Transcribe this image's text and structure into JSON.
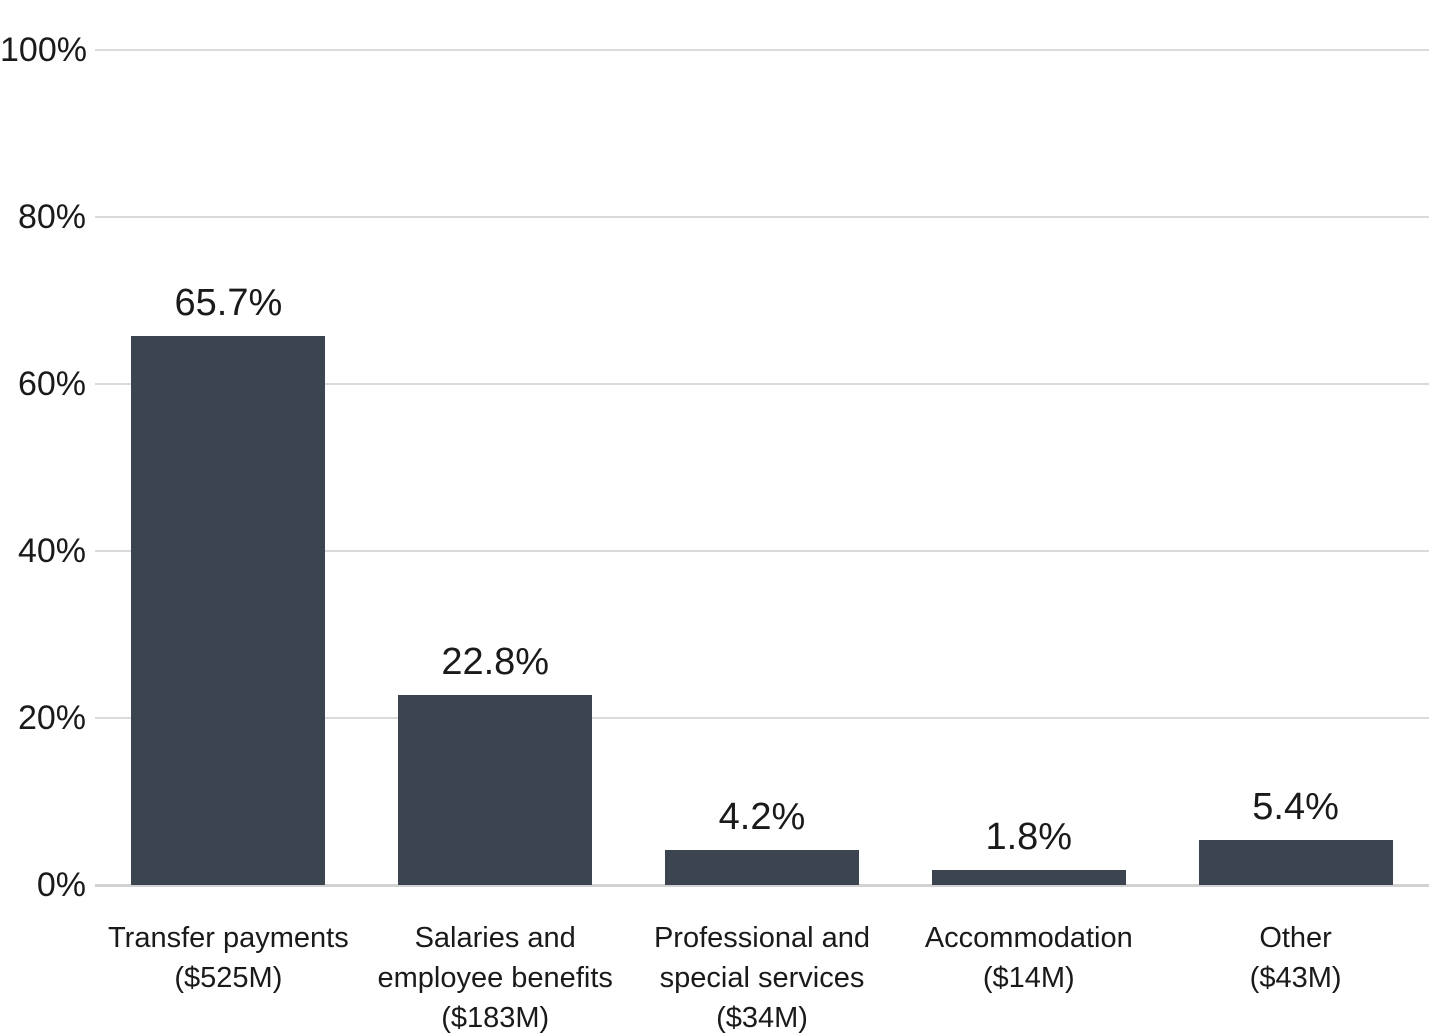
{
  "chart_data": {
    "type": "bar",
    "title": "",
    "xlabel": "",
    "ylabel": "",
    "ylim": [
      0,
      100
    ],
    "grid": true,
    "legend": "none",
    "background": "#ffffff",
    "yticks": [
      {
        "value": 0,
        "label": "0%"
      },
      {
        "value": 20,
        "label": "20%"
      },
      {
        "value": 40,
        "label": "40%"
      },
      {
        "value": 60,
        "label": "60%"
      },
      {
        "value": 80,
        "label": "80%"
      },
      {
        "value": 100,
        "label": "100%"
      }
    ],
    "categories": [
      "Transfer payments ($525M)",
      "Salaries and employee benefits ($183M)",
      "Professional and special services ($34M)",
      "Accommodation ($14M)",
      "Other ($43M)"
    ],
    "values": [
      65.7,
      22.8,
      4.2,
      1.8,
      5.4
    ],
    "bars": [
      {
        "category_lines": [
          "Transfer payments",
          "($525M)"
        ],
        "amount": "$525M",
        "value": 65.7,
        "data_label": "65.7%"
      },
      {
        "category_lines": [
          "Salaries and",
          "employee benefits",
          "($183M)"
        ],
        "amount": "$183M",
        "value": 22.8,
        "data_label": "22.8%"
      },
      {
        "category_lines": [
          "Professional and",
          "special services",
          "($34M)"
        ],
        "amount": "$34M",
        "value": 4.2,
        "data_label": "4.2%"
      },
      {
        "category_lines": [
          "Accommodation",
          "($14M)"
        ],
        "amount": "$14M",
        "value": 1.8,
        "data_label": "1.8%"
      },
      {
        "category_lines": [
          "Other",
          "($43M)"
        ],
        "amount": "$43M",
        "value": 5.4,
        "data_label": "5.4%"
      }
    ],
    "colors": {
      "bar": "#3b444f",
      "gridline": "#dadada",
      "baseline": "#d2d2d2",
      "text": "#1a1a1a"
    }
  }
}
